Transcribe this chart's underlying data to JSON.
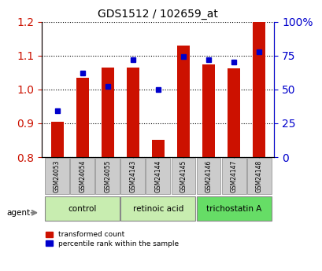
{
  "title": "GDS1512 / 102659_at",
  "samples": [
    "GSM24053",
    "GSM24054",
    "GSM24055",
    "GSM24143",
    "GSM24144",
    "GSM24145",
    "GSM24146",
    "GSM24147",
    "GSM24148"
  ],
  "red_values": [
    0.905,
    1.035,
    1.065,
    1.065,
    0.852,
    1.13,
    1.075,
    1.062,
    1.2
  ],
  "blue_values_pct": [
    34,
    62,
    52,
    72,
    50,
    74,
    72,
    70,
    78
  ],
  "ylim_left": [
    0.8,
    1.2
  ],
  "ylim_right": [
    0,
    100
  ],
  "yticks_left": [
    0.8,
    0.9,
    1.0,
    1.1,
    1.2
  ],
  "yticks_right": [
    0,
    25,
    50,
    75,
    100
  ],
  "ytick_labels_right": [
    "0",
    "25",
    "50",
    "75",
    "100%"
  ],
  "groups": [
    {
      "label": "control",
      "samples": [
        0,
        1,
        2
      ],
      "color": "#d8f0c0"
    },
    {
      "label": "retinoic acid",
      "samples": [
        3,
        4,
        5
      ],
      "color": "#d8f0c0"
    },
    {
      "label": "trichostatin A",
      "samples": [
        6,
        7,
        8
      ],
      "color": "#80e880"
    }
  ],
  "bar_color": "#cc1100",
  "dot_color": "#0000cc",
  "bar_width": 0.5,
  "xlabel_color": "#cc1100",
  "ylabel_right_color": "#0000cc",
  "agent_label": "agent",
  "legend_red": "transformed count",
  "legend_blue": "percentile rank within the sample",
  "tick_bg_color": "#cccccc",
  "group_border_color": "#888888",
  "plot_bg_color": "#ffffff"
}
